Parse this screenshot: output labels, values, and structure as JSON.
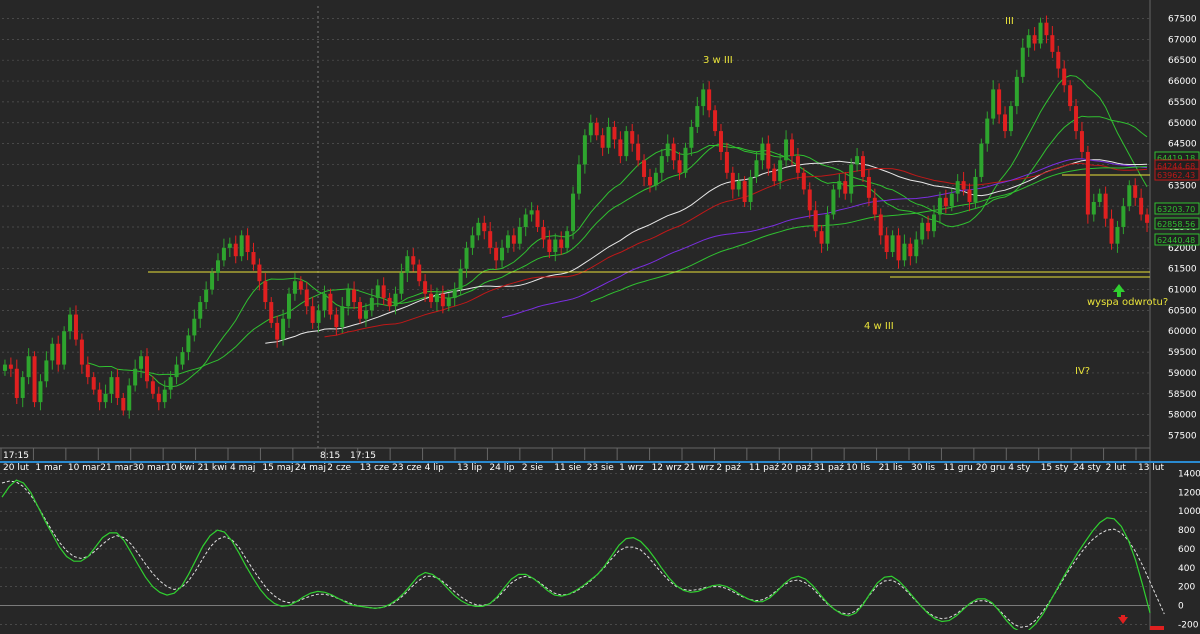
{
  "colors": {
    "background": "#272727",
    "grid": "#555555",
    "candle_up": "#2ea52e",
    "candle_down": "#e02020",
    "sma_white": "#e8e8e8",
    "sma_red": "#c01818",
    "sma_green": "#30c030",
    "sma_purple": "#7a2ee0",
    "yellow_line": "#e8e23a",
    "osc_line": "#30d030",
    "osc_signal": "#e0e0e0",
    "annotation": "#e8e23a",
    "separator": "#2a8ad0"
  },
  "chart_data": [
    {
      "type": "candlestick",
      "ylim": [
        57200,
        67800
      ],
      "y_ticks": [
        57500,
        58000,
        58500,
        59000,
        59500,
        60000,
        60500,
        61000,
        61500,
        62000,
        62500,
        63000,
        63500,
        64000,
        64500,
        65000,
        65500,
        66000,
        66500,
        67000,
        67500
      ],
      "x_date_labels": [
        "20 lut",
        "1 mar",
        "10 mar",
        "21 mar",
        "30 mar",
        "10 kwi",
        "21 kwi",
        "4 maj",
        "15 maj",
        "24 maj",
        "2 cze",
        "13 cze",
        "23 cze",
        "4 lip",
        "13 lip",
        "24 lip",
        "2 sie",
        "11 sie",
        "23 sie",
        "1 wrz",
        "12 wrz",
        "21 wrz",
        "2 paź",
        "11 paź",
        "20 paź",
        "31 paź",
        "10 lis",
        "21 lis",
        "30 lis",
        "11 gru",
        "20 gru",
        "4 sty",
        "15 sty",
        "24 sty",
        "2 lut",
        "13 lut"
      ],
      "time_labels": [
        "17:15",
        "8:15",
        "17:15"
      ],
      "closes": [
        59200,
        59100,
        58400,
        58900,
        59400,
        58300,
        58800,
        59300,
        59700,
        59200,
        60000,
        60400,
        59800,
        59200,
        58900,
        58600,
        58300,
        58500,
        58900,
        58400,
        58100,
        58700,
        59100,
        59400,
        58800,
        58500,
        58300,
        58600,
        58900,
        59200,
        59500,
        59900,
        60300,
        60700,
        61000,
        61400,
        61700,
        62000,
        62100,
        61800,
        62300,
        61900,
        61600,
        61200,
        60700,
        60200,
        59800,
        60300,
        60900,
        61200,
        61000,
        60600,
        60200,
        60500,
        60900,
        60400,
        60100,
        60600,
        61000,
        60700,
        60300,
        60500,
        60800,
        61100,
        60800,
        60600,
        60900,
        61400,
        61800,
        61600,
        61200,
        60900,
        60700,
        60900,
        60600,
        60800,
        61000,
        61500,
        62000,
        62300,
        62600,
        62400,
        62000,
        61700,
        62000,
        62300,
        62100,
        62500,
        62800,
        62900,
        62500,
        62200,
        61900,
        62200,
        62000,
        62400,
        63300,
        64000,
        64700,
        65000,
        64700,
        64400,
        64900,
        64600,
        64200,
        64800,
        64500,
        64100,
        63700,
        63500,
        63800,
        64200,
        64500,
        64100,
        63800,
        64400,
        64900,
        65400,
        65800,
        65300,
        64800,
        64300,
        63800,
        63400,
        63600,
        63100,
        63700,
        64100,
        64500,
        63900,
        63600,
        64100,
        64600,
        64200,
        63800,
        63400,
        62900,
        62400,
        62100,
        62800,
        63400,
        63600,
        63300,
        64000,
        64200,
        63700,
        63200,
        62800,
        62300,
        61900,
        62300,
        61700,
        62100,
        61800,
        62200,
        62600,
        62400,
        62800,
        63200,
        63000,
        63300,
        63600,
        63400,
        63100,
        63700,
        64500,
        65100,
        65800,
        65200,
        64800,
        65400,
        66100,
        66800,
        67100,
        66900,
        67400,
        67100,
        66700,
        66300,
        65900,
        65400,
        64800,
        64300,
        62800,
        63100,
        63300,
        62700,
        62100,
        62500,
        63000,
        63500,
        63200,
        62800,
        62600
      ]
    },
    {
      "type": "line",
      "ylim": [
        -260,
        1480
      ],
      "y_ticks": [
        -200,
        0,
        200,
        400,
        600,
        800,
        1000,
        1200,
        1400
      ],
      "series": [
        {
          "values": [
            1150,
            1260,
            1330,
            1300,
            1200,
            1050,
            900,
            760,
            620,
            520,
            470,
            470,
            520,
            620,
            720,
            770,
            770,
            690,
            560,
            430,
            300,
            200,
            140,
            110,
            130,
            200,
            330,
            480,
            630,
            740,
            800,
            780,
            690,
            560,
            420,
            290,
            170,
            80,
            20,
            -10,
            0,
            40,
            90,
            130,
            150,
            140,
            110,
            70,
            30,
            0,
            -10,
            -20,
            -30,
            -20,
            10,
            60,
            130,
            220,
            310,
            350,
            330,
            270,
            190,
            110,
            50,
            10,
            -10,
            -10,
            20,
            90,
            190,
            280,
            330,
            330,
            290,
            230,
            160,
            110,
            100,
            120,
            160,
            210,
            270,
            330,
            420,
            530,
            640,
            710,
            720,
            680,
            600,
            500,
            390,
            290,
            210,
            160,
            140,
            150,
            180,
            210,
            220,
            200,
            160,
            110,
            70,
            40,
            40,
            80,
            150,
            230,
            290,
            310,
            280,
            210,
            120,
            30,
            -40,
            -90,
            -110,
            -80,
            10,
            130,
            240,
            300,
            310,
            260,
            180,
            90,
            0,
            -80,
            -140,
            -170,
            -160,
            -110,
            -40,
            30,
            70,
            70,
            30,
            -60,
            -160,
            -240,
            -280,
            -270,
            -200,
            -100,
            30,
            170,
            310,
            440,
            570,
            680,
            790,
            880,
            930,
            920,
            840,
            690,
            480,
            210,
            -80
          ]
        },
        {
          "values": [
            1300,
            1320,
            1310,
            1260,
            1170,
            1050,
            920,
            790,
            670,
            580,
            520,
            500,
            520,
            580,
            650,
            710,
            740,
            720,
            650,
            550,
            440,
            340,
            260,
            200,
            170,
            190,
            260,
            370,
            500,
            620,
            700,
            730,
            700,
            620,
            500,
            380,
            270,
            170,
            100,
            50,
            30,
            40,
            70,
            100,
            120,
            120,
            100,
            70,
            40,
            10,
            -10,
            -20,
            -30,
            -20,
            0,
            50,
            110,
            190,
            260,
            310,
            310,
            280,
            220,
            150,
            90,
            40,
            10,
            0,
            20,
            80,
            160,
            240,
            290,
            310,
            290,
            240,
            180,
            130,
            110,
            120,
            150,
            200,
            260,
            330,
            410,
            500,
            580,
            620,
            620,
            590,
            520,
            430,
            340,
            260,
            200,
            170,
            160,
            170,
            190,
            200,
            200,
            180,
            140,
            100,
            70,
            50,
            60,
            100,
            160,
            220,
            260,
            270,
            240,
            180,
            100,
            20,
            -40,
            -80,
            -90,
            -60,
            20,
            120,
            210,
            260,
            270,
            230,
            160,
            80,
            0,
            -70,
            -120,
            -140,
            -130,
            -90,
            -30,
            20,
            50,
            50,
            20,
            -50,
            -130,
            -200,
            -230,
            -220,
            -160,
            -70,
            40,
            160,
            290,
            410,
            520,
            620,
            700,
            760,
            800,
            810,
            770,
            690,
            570,
            420,
            250,
            80,
            -90
          ]
        }
      ]
    }
  ],
  "price_tags": [
    {
      "text": "64419.18",
      "color": "#30c030"
    },
    {
      "text": "64244.68",
      "color": "#c01818"
    },
    {
      "text": "63962.43",
      "color": "#c01818"
    },
    {
      "text": "63203.70",
      "color": "#30c030"
    },
    {
      "text": "62858.56",
      "color": "#30c030"
    },
    {
      "text": "62440.48",
      "color": "#30c030"
    }
  ],
  "annotations": {
    "label_iii": "III",
    "label_3_w_iii": "3 w III",
    "label_4_w_iii": "4 w III",
    "label_iv": "IV?",
    "label_wyspa": "wyspa odwrotu?"
  }
}
